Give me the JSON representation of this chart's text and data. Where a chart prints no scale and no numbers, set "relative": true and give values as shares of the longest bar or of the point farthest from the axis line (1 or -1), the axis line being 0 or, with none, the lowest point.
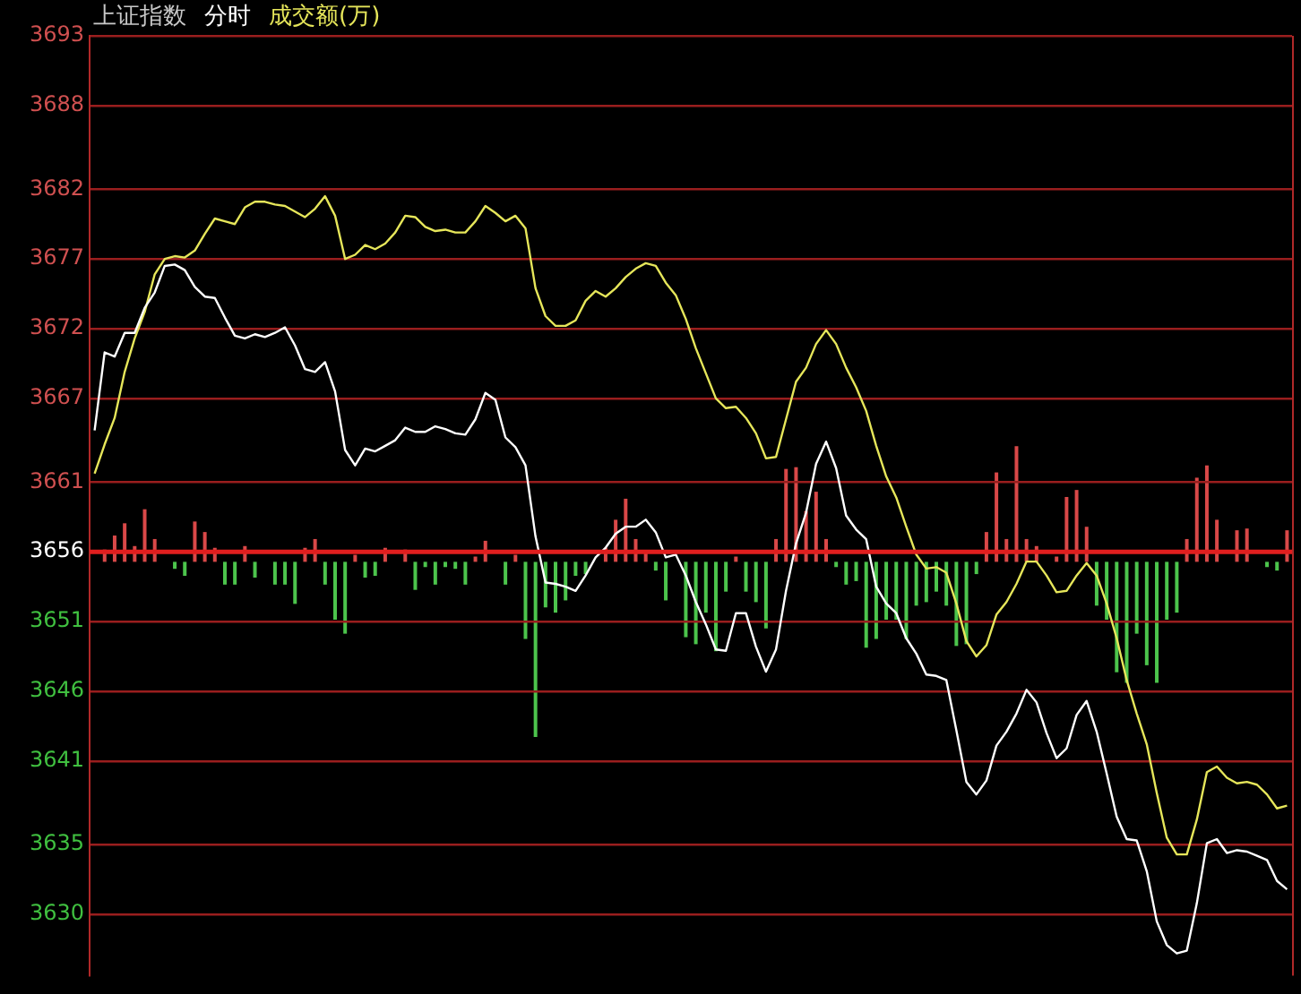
{
  "chart_data": [
    {
      "type": "line",
      "title": "上证指数",
      "grid": "y",
      "tick_labels": "y",
      "categories": [
        null,
        null,
        null,
        null,
        null,
        null,
        null,
        null,
        null,
        null,
        null,
        null,
        null,
        null,
        null,
        null,
        null,
        null,
        null,
        null,
        null,
        null,
        null,
        null,
        null,
        null,
        null,
        null,
        null,
        null,
        null,
        null,
        null,
        null,
        null,
        null,
        null,
        null,
        null,
        null,
        null,
        null,
        null,
        null,
        null,
        null,
        null,
        null,
        null,
        null,
        null,
        null,
        null,
        null,
        null,
        null,
        null,
        null,
        null,
        null,
        null,
        null,
        null,
        null,
        null,
        null,
        null,
        null,
        null,
        null,
        null,
        null,
        null,
        null,
        null,
        null,
        null,
        null,
        null,
        null,
        null,
        null,
        null,
        null,
        null,
        null,
        null,
        null,
        null,
        null,
        null,
        null,
        null,
        null,
        null,
        null,
        null,
        null,
        null,
        null,
        null,
        null,
        null,
        null,
        null,
        null,
        null,
        null,
        null,
        null,
        null,
        null,
        null,
        null,
        null,
        null,
        null,
        null,
        null,
        null
      ],
      "ylim": [
        3625.6,
        3693
      ],
      "yticks": [
        3693,
        3688,
        3682,
        3677,
        3672,
        3667,
        3661,
        3656,
        3651,
        3646,
        3641,
        3635,
        3630
      ],
      "ref_lines": [
        {
          "axis": "y",
          "value": 3656,
          "color": "#e01e1e"
        }
      ],
      "series": [
        {
          "name": "分时",
          "color": "#ffffff",
          "values": [
            3664.7,
            3670.3,
            3670.0,
            3671.7,
            3671.7,
            3673.5,
            3674.6,
            3676.5,
            3676.6,
            3676.2,
            3675.0,
            3674.3,
            3674.2,
            3672.8,
            3671.5,
            3671.3,
            3671.6,
            3671.4,
            3671.7,
            3672.1,
            3670.8,
            3669.1,
            3668.9,
            3669.6,
            3667.5,
            3663.3,
            3662.2,
            3663.4,
            3663.2,
            3663.6,
            3664.0,
            3664.9,
            3664.6,
            3664.6,
            3665.0,
            3664.8,
            3664.5,
            3664.4,
            3665.5,
            3667.4,
            3666.9,
            3664.2,
            3663.5,
            3662.2,
            3657.1,
            3653.8,
            3653.7,
            3653.5,
            3653.2,
            3654.3,
            3655.6,
            3656.3,
            3657.3,
            3657.8,
            3657.8,
            3658.3,
            3657.4,
            3655.6,
            3655.8,
            3654.3,
            3652.4,
            3650.8,
            3649.0,
            3648.9,
            3651.6,
            3651.6,
            3649.2,
            3647.4,
            3649.0,
            3653.2,
            3656.6,
            3658.8,
            3662.3,
            3663.9,
            3662.0,
            3658.6,
            3657.6,
            3656.9,
            3653.5,
            3652.3,
            3651.6,
            3649.8,
            3648.7,
            3647.2,
            3647.1,
            3646.8,
            3643.2,
            3639.5,
            3638.6,
            3639.6,
            3642.1,
            3643.1,
            3644.4,
            3646.1,
            3645.2,
            3643.0,
            3641.2,
            3641.9,
            3644.3,
            3645.3,
            3643.1,
            3640.1,
            3637.0,
            3635.4,
            3635.3,
            3633.1,
            3629.5,
            3627.8,
            3627.2,
            3627.4,
            3630.8,
            3635.1,
            3635.4,
            3634.4,
            3634.6,
            3634.5,
            3634.2,
            3633.9,
            3632.4,
            3631.8
          ]
        },
        {
          "name": "成交额(万)",
          "color": "#e6e65a",
          "values": [
            3661.6,
            3663.7,
            3665.6,
            3668.9,
            3671.3,
            3673.2,
            3675.9,
            3677.0,
            3677.2,
            3677.1,
            3677.6,
            3678.8,
            3679.9,
            3679.7,
            3679.5,
            3680.7,
            3681.1,
            3681.1,
            3680.9,
            3680.8,
            3680.4,
            3680.0,
            3680.6,
            3681.5,
            3680.1,
            3677.0,
            3677.3,
            3678.0,
            3677.7,
            3678.1,
            3678.9,
            3680.1,
            3680.0,
            3679.3,
            3679.0,
            3679.1,
            3678.9,
            3678.9,
            3679.7,
            3680.8,
            3680.3,
            3679.7,
            3680.1,
            3679.2,
            3674.9,
            3672.9,
            3672.2,
            3672.2,
            3672.6,
            3674.0,
            3674.7,
            3674.3,
            3674.9,
            3675.7,
            3676.3,
            3676.7,
            3676.5,
            3675.3,
            3674.4,
            3672.7,
            3670.6,
            3668.8,
            3667.0,
            3666.3,
            3666.4,
            3665.6,
            3664.5,
            3662.7,
            3662.8,
            3665.5,
            3668.2,
            3669.2,
            3670.9,
            3671.9,
            3670.9,
            3669.2,
            3667.8,
            3666.1,
            3663.6,
            3661.4,
            3659.9,
            3657.8,
            3655.8,
            3654.8,
            3654.9,
            3654.5,
            3652.3,
            3649.6,
            3648.5,
            3649.3,
            3651.5,
            3652.4,
            3653.7,
            3655.3,
            3655.3,
            3654.3,
            3653.1,
            3653.2,
            3654.3,
            3655.2,
            3654.3,
            3652.3,
            3649.8,
            3646.8,
            3644.4,
            3642.2,
            3638.7,
            3635.5,
            3634.3,
            3634.3,
            3636.8,
            3640.2,
            3640.6,
            3639.8,
            3639.4,
            3639.5,
            3639.3,
            3638.6,
            3637.6,
            3637.8
          ]
        }
      ]
    },
    {
      "type": "bar",
      "relative": true,
      "tick_labels": false,
      "categories": [
        null,
        null,
        null,
        null,
        null,
        null,
        null,
        null,
        null,
        null,
        null,
        null,
        null,
        null,
        null,
        null,
        null,
        null,
        null,
        null,
        null,
        null,
        null,
        null,
        null,
        null,
        null,
        null,
        null,
        null,
        null,
        null,
        null,
        null,
        null,
        null,
        null,
        null,
        null,
        null,
        null,
        null,
        null,
        null,
        null,
        null,
        null,
        null,
        null,
        null,
        null,
        null,
        null,
        null,
        null,
        null,
        null,
        null,
        null,
        null,
        null,
        null,
        null,
        null,
        null,
        null,
        null,
        null,
        null,
        null,
        null,
        null,
        null,
        null,
        null,
        null,
        null,
        null,
        null,
        null,
        null,
        null,
        null,
        null,
        null,
        null,
        null,
        null,
        null,
        null,
        null,
        null,
        null,
        null,
        null,
        null,
        null,
        null,
        null,
        null,
        null,
        null,
        null,
        null,
        null,
        null,
        null,
        null,
        null,
        null,
        null,
        null,
        null,
        null,
        null,
        null,
        null,
        null,
        null,
        null
      ],
      "values": [
        0,
        0.07,
        0.15,
        0.22,
        0.09,
        0.3,
        0.13,
        0,
        -0.04,
        -0.08,
        0.23,
        0.17,
        0.08,
        -0.13,
        -0.13,
        0.09,
        -0.09,
        0,
        -0.13,
        -0.13,
        -0.24,
        0.08,
        0.13,
        -0.13,
        -0.33,
        -0.41,
        0.04,
        -0.09,
        -0.08,
        0.08,
        0,
        0.07,
        -0.16,
        -0.03,
        -0.13,
        -0.03,
        -0.04,
        -0.13,
        0.03,
        0.12,
        0,
        -0.13,
        0.04,
        -0.44,
        -1,
        -0.26,
        -0.29,
        -0.22,
        -0.08,
        -0.07,
        0,
        0.08,
        0.24,
        0.36,
        0.13,
        0.05,
        -0.05,
        -0.22,
        0,
        -0.43,
        -0.47,
        -0.29,
        -0.51,
        -0.17,
        0.03,
        -0.17,
        -0.23,
        -0.38,
        0.13,
        0.53,
        0.54,
        0.29,
        0.4,
        0.13,
        -0.03,
        -0.13,
        -0.11,
        -0.49,
        -0.44,
        -0.33,
        -0.33,
        -0.44,
        -0.25,
        -0.23,
        -0.17,
        -0.25,
        -0.48,
        -0.47,
        -0.07,
        0.17,
        0.51,
        0.13,
        0.66,
        0.13,
        0.09,
        0,
        0.03,
        0.37,
        0.41,
        0.2,
        -0.25,
        -0.33,
        -0.63,
        -0.69,
        -0.41,
        -0.59,
        -0.69,
        -0.33,
        -0.29,
        0.13,
        0.48,
        0.55,
        0.24,
        0,
        0.18,
        0.19,
        0,
        -0.03,
        -0.05,
        0.18
      ],
      "colors": [
        "#4cc44c",
        "#d94848",
        "#d94848",
        "#d94848",
        "#d94848",
        "#d94848",
        "#d94848",
        "#4cc44c",
        "#4cc44c",
        "#4cc44c",
        "#d94848",
        "#d94848",
        "#d94848",
        "#4cc44c",
        "#4cc44c",
        "#d94848",
        "#4cc44c",
        "#4cc44c",
        "#4cc44c",
        "#4cc44c",
        "#4cc44c",
        "#d94848",
        "#d94848",
        "#4cc44c",
        "#4cc44c",
        "#4cc44c",
        "#d94848",
        "#4cc44c",
        "#4cc44c",
        "#d94848",
        "#4cc44c",
        "#d94848",
        "#4cc44c",
        "#4cc44c",
        "#4cc44c",
        "#4cc44c",
        "#4cc44c",
        "#4cc44c",
        "#d94848",
        "#d94848",
        "#4cc44c",
        "#4cc44c",
        "#d94848",
        "#4cc44c",
        "#4cc44c",
        "#4cc44c",
        "#4cc44c",
        "#4cc44c",
        "#4cc44c",
        "#4cc44c",
        "#4cc44c",
        "#d94848",
        "#d94848",
        "#d94848",
        "#d94848",
        "#d94848",
        "#4cc44c",
        "#4cc44c",
        "#4cc44c",
        "#4cc44c",
        "#4cc44c",
        "#4cc44c",
        "#4cc44c",
        "#4cc44c",
        "#d94848",
        "#4cc44c",
        "#4cc44c",
        "#4cc44c",
        "#d94848",
        "#d94848",
        "#d94848",
        "#d94848",
        "#d94848",
        "#d94848",
        "#4cc44c",
        "#4cc44c",
        "#4cc44c",
        "#4cc44c",
        "#4cc44c",
        "#4cc44c",
        "#4cc44c",
        "#4cc44c",
        "#4cc44c",
        "#4cc44c",
        "#4cc44c",
        "#4cc44c",
        "#4cc44c",
        "#4cc44c",
        "#4cc44c",
        "#d94848",
        "#d94848",
        "#d94848",
        "#d94848",
        "#d94848",
        "#d94848",
        "#4cc44c",
        "#d94848",
        "#d94848",
        "#d94848",
        "#d94848",
        "#4cc44c",
        "#4cc44c",
        "#4cc44c",
        "#4cc44c",
        "#4cc44c",
        "#4cc44c",
        "#4cc44c",
        "#4cc44c",
        "#4cc44c",
        "#d94848",
        "#d94848",
        "#d94848",
        "#d94848",
        "#4cc44c",
        "#d94848",
        "#d94848",
        "#4cc44c",
        "#4cc44c",
        "#4cc44c",
        "#d94848"
      ]
    }
  ]
}
